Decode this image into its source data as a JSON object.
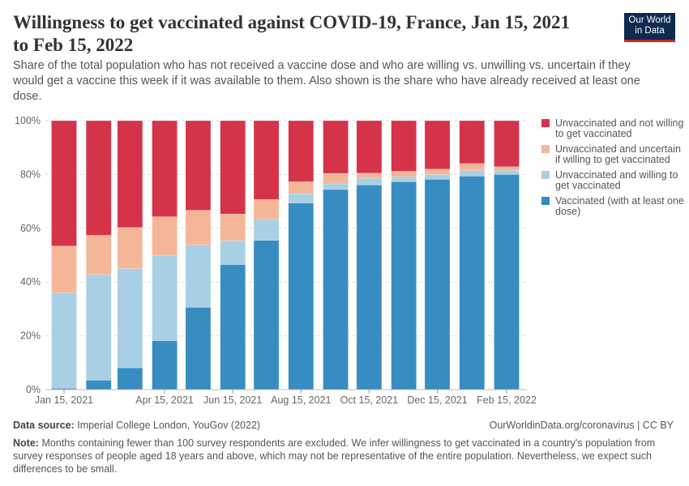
{
  "header": {
    "title": "Willingness to get vaccinated against COVID-19, France, Jan 15, 2021 to Feb 15, 2022",
    "subtitle": "Share of the total population who has not received a vaccine dose and who are willing vs. unwilling vs. uncertain if they would get a vaccine this week if it was available to them. Also shown is the share who have already received at least one dose.",
    "logo": "Our World in Data"
  },
  "chart_data": {
    "type": "bar",
    "stacked": true,
    "categories": [
      "2021-01-15",
      "2021-02-15",
      "2021-03-15",
      "2021-04-15",
      "2021-05-15",
      "2021-06-15",
      "2021-07-15",
      "2021-08-15",
      "2021-09-15",
      "2021-10-15",
      "2021-11-15",
      "2021-12-15",
      "2022-01-15",
      "2022-02-15"
    ],
    "x_tick_labels": [
      "Jan 15, 2021",
      "Apr 15, 2021",
      "Jun 15, 2021",
      "Aug 15, 2021",
      "Oct 15, 2021",
      "Dec 15, 2021",
      "Feb 15, 2022"
    ],
    "x_tick_dates": [
      "2021-01-15",
      "2021-04-15",
      "2021-06-15",
      "2021-08-15",
      "2021-10-15",
      "2021-12-15",
      "2022-02-15"
    ],
    "y_tick_labels": [
      "0%",
      "20%",
      "40%",
      "60%",
      "80%",
      "100%"
    ],
    "ylim": [
      0,
      100
    ],
    "grid": true,
    "legend_position": "right",
    "series": [
      {
        "name": "Vaccinated (with at least one dose)",
        "color": "#378dc1",
        "values": [
          0.5,
          3.5,
          8.1,
          18.2,
          30.6,
          46.5,
          55.5,
          69.4,
          74.4,
          76.1,
          77.3,
          78.2,
          79.4,
          80.0
        ]
      },
      {
        "name": "Unvaccinated and willing to get vaccinated",
        "color": "#a8d0e4",
        "values": [
          35.5,
          39.3,
          36.9,
          31.7,
          23.2,
          8.9,
          7.8,
          3.5,
          2.1,
          2.5,
          1.8,
          1.8,
          2.0,
          1.5
        ]
      },
      {
        "name": "Unvaccinated and uncertain if willing to get vaccinated",
        "color": "#f5b698",
        "values": [
          17.4,
          14.6,
          15.3,
          14.4,
          12.9,
          9.9,
          7.4,
          4.4,
          3.9,
          1.9,
          2.1,
          2.0,
          2.7,
          1.4
        ]
      },
      {
        "name": "Unvaccinated and not willing to get vaccinated",
        "color": "#d5334a",
        "values": [
          46.6,
          42.6,
          39.7,
          35.7,
          33.3,
          34.7,
          29.3,
          22.7,
          19.6,
          19.5,
          18.8,
          18.0,
          15.9,
          17.1
        ]
      }
    ]
  },
  "footer": {
    "source_label": "Data source:",
    "source": "Imperial College London, YouGov (2022)",
    "url": "OurWorldinData.org/coronavirus | CC BY",
    "note_label": "Note:",
    "note": "Months containing fewer than 100 survey respondents are excluded. We infer willingness to get vaccinated in a country's population from survey responses of people aged 18 years and above, which may not be representative of the entire population. Nevertheless, we expect such differences to be small."
  }
}
